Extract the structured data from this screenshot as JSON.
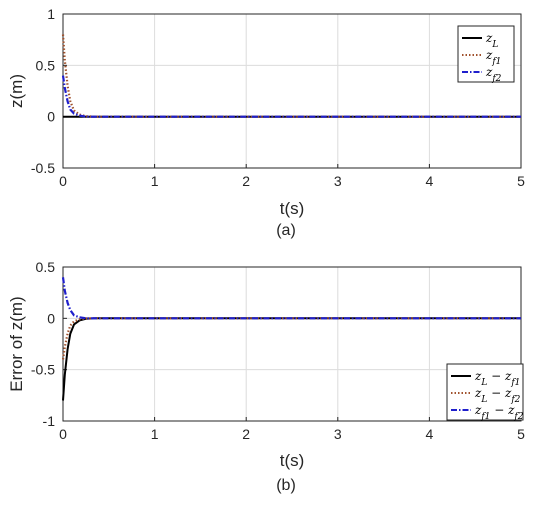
{
  "chart_data": [
    {
      "type": "line",
      "caption": "(a)",
      "xlabel": "t(s)",
      "ylabel": "z(m)",
      "xlim": [
        0,
        5
      ],
      "ylim": [
        -0.5,
        1
      ],
      "xticks": [
        "0",
        "1",
        "2",
        "3",
        "4",
        "5"
      ],
      "yticks": [
        "1",
        "0.5",
        "0",
        "-0.5"
      ],
      "grid": true,
      "legend_position": "top-right",
      "series": [
        {
          "name": "z_L",
          "legend_main": "z",
          "legend_sub": "L",
          "color": "#000000",
          "style": "solid",
          "x": [
            0,
            0.05,
            0.1,
            0.2,
            0.3,
            0.5,
            1,
            2,
            3,
            4,
            5
          ],
          "y": [
            0,
            0,
            0,
            0,
            0,
            0,
            0,
            0,
            0,
            0,
            0
          ]
        },
        {
          "name": "z_f1",
          "legend_main": "z",
          "legend_sub": "f1",
          "color": "#a0522d",
          "style": "dotted",
          "x": [
            0,
            0.02,
            0.05,
            0.08,
            0.12,
            0.18,
            0.25,
            0.35,
            0.5,
            1,
            2,
            3,
            4,
            5
          ],
          "y": [
            0.8,
            0.55,
            0.3,
            0.15,
            0.06,
            0.02,
            0.005,
            0,
            0,
            0,
            0,
            0,
            0,
            0
          ]
        },
        {
          "name": "z_f2",
          "legend_main": "z",
          "legend_sub": "f2",
          "color": "#1f1fcc",
          "style": "dashdot",
          "x": [
            0,
            0.02,
            0.05,
            0.08,
            0.12,
            0.18,
            0.25,
            0.35,
            0.5,
            1,
            2,
            3,
            4,
            5
          ],
          "y": [
            0.4,
            0.28,
            0.15,
            0.07,
            0.03,
            0.01,
            0,
            0,
            0,
            0,
            0,
            0,
            0,
            0
          ]
        }
      ]
    },
    {
      "type": "line",
      "caption": "(b)",
      "xlabel": "t(s)",
      "ylabel": "Error of z(m)",
      "xlim": [
        0,
        5
      ],
      "ylim": [
        -1,
        0.5
      ],
      "xticks": [
        "0",
        "1",
        "2",
        "3",
        "4",
        "5"
      ],
      "yticks": [
        "0.5",
        "0",
        "-0.5",
        "-1"
      ],
      "grid": true,
      "legend_position": "bottom-right",
      "series": [
        {
          "name": "z_L - z_f1",
          "legend_parts": [
            [
              "z",
              "L"
            ],
            [
              "z",
              "f1"
            ]
          ],
          "color": "#000000",
          "style": "solid",
          "x": [
            0,
            0.02,
            0.05,
            0.08,
            0.12,
            0.18,
            0.25,
            0.35,
            0.5,
            1,
            2,
            3,
            4,
            5
          ],
          "y": [
            -0.8,
            -0.55,
            -0.3,
            -0.15,
            -0.06,
            -0.02,
            -0.005,
            0,
            0,
            0,
            0,
            0,
            0,
            0
          ]
        },
        {
          "name": "z_L - z_f2",
          "legend_parts": [
            [
              "z",
              "L"
            ],
            [
              "z",
              "f2"
            ]
          ],
          "color": "#a0522d",
          "style": "dotted",
          "x": [
            0,
            0.02,
            0.05,
            0.08,
            0.12,
            0.18,
            0.25,
            0.35,
            0.5,
            1,
            2,
            3,
            4,
            5
          ],
          "y": [
            -0.4,
            -0.28,
            -0.15,
            -0.07,
            -0.03,
            -0.01,
            0,
            0,
            0,
            0,
            0,
            0,
            0,
            0
          ]
        },
        {
          "name": "z_f1 - z_f2",
          "legend_parts": [
            [
              "z",
              "f1"
            ],
            [
              "z",
              "f2"
            ]
          ],
          "color": "#1f1fcc",
          "style": "dashdot",
          "x": [
            0,
            0.02,
            0.05,
            0.08,
            0.12,
            0.18,
            0.25,
            0.35,
            0.5,
            1,
            2,
            3,
            4,
            5
          ],
          "y": [
            0.4,
            0.27,
            0.15,
            0.08,
            0.03,
            0.01,
            0,
            0,
            0,
            0,
            0,
            0,
            0,
            0
          ]
        }
      ]
    }
  ]
}
